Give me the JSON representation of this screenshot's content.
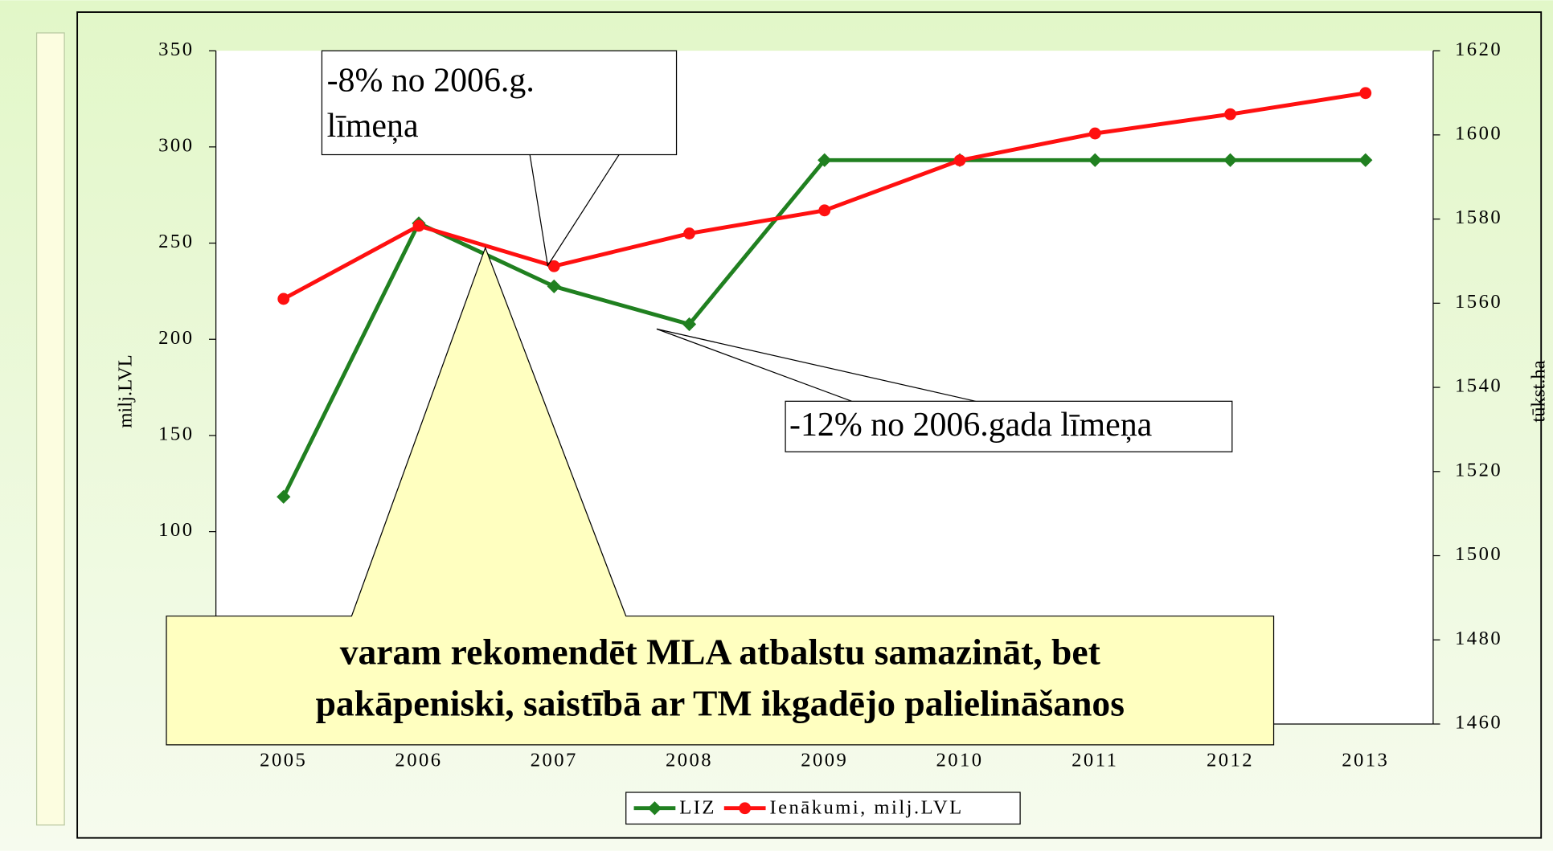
{
  "chart_data": {
    "type": "line",
    "categories": [
      "2005",
      "2006",
      "2007",
      "2008",
      "2009",
      "2010",
      "2011",
      "2012",
      "2013"
    ],
    "series": [
      {
        "name": "LIZ",
        "color": "#208020",
        "axis": "y2",
        "marker": "diamond",
        "values": [
          1514,
          1579,
          1564,
          1555,
          1594,
          1594,
          1594,
          1594,
          1594
        ]
      },
      {
        "name": "Ienākumi, milj.LVL",
        "color": "#ff1010",
        "axis": "y",
        "marker": "circle",
        "values": [
          221,
          259,
          238,
          255,
          267,
          293,
          307,
          317,
          328
        ]
      }
    ],
    "ylabel": "milj.LVL",
    "y2label": "tūkst.ha",
    "ylim": [
      0,
      350
    ],
    "yticks": [
      100,
      150,
      200,
      250,
      300,
      350
    ],
    "y2lim": [
      1460,
      1620
    ],
    "y2ticks": [
      1460,
      1480,
      1500,
      1520,
      1540,
      1560,
      1580,
      1600,
      1620
    ],
    "legend": "bottom",
    "annotations": [
      {
        "lines": [
          "-8% no 2006.g.",
          "līmeņa"
        ]
      },
      {
        "lines": [
          "-12% no 2006.gada līmeņa"
        ]
      },
      {
        "lines": [
          "varam rekomendēt MLA atbalstu samazināt, bet",
          "pakāpeniski,  saistībā ar TM ikgadējo palielināšanos"
        ]
      }
    ]
  }
}
